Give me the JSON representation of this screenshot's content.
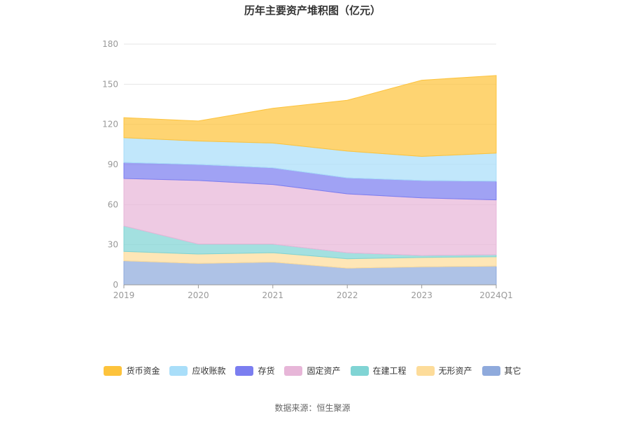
{
  "title": "历年主要资产堆积图（亿元）",
  "source": "数据来源：恒生聚源",
  "chart_data": {
    "type": "area",
    "stacked": true,
    "x": [
      "2019",
      "2020",
      "2021",
      "2022",
      "2023",
      "2024Q1"
    ],
    "ylim": [
      0,
      180
    ],
    "yticks": [
      0,
      30,
      60,
      90,
      120,
      150,
      180
    ],
    "grid": true,
    "legend_position": "bottom",
    "series": [
      {
        "name": "其它",
        "color": "#8faadc",
        "values": [
          18,
          16,
          17,
          12.5,
          13.5,
          14
        ]
      },
      {
        "name": "无形资产",
        "color": "#fddc9a",
        "values": [
          7,
          7,
          7,
          7,
          7,
          7
        ]
      },
      {
        "name": "在建工程",
        "color": "#80d4d4",
        "values": [
          19,
          7.5,
          6.5,
          4.5,
          1.5,
          1.5
        ]
      },
      {
        "name": "固定资产",
        "color": "#e7b6d8",
        "values": [
          35.5,
          47.5,
          44.5,
          44,
          43,
          41
        ]
      },
      {
        "name": "存货",
        "color": "#7b7ef0",
        "values": [
          12,
          12,
          12.5,
          12,
          13,
          14
        ]
      },
      {
        "name": "应收账款",
        "color": "#a9def9",
        "values": [
          18.5,
          17.5,
          18.5,
          20,
          18,
          21
        ]
      },
      {
        "name": "货币资金",
        "color": "#fdc33c",
        "values": [
          15,
          15,
          26,
          38,
          57,
          58
        ]
      }
    ],
    "legend_order": [
      "货币资金",
      "应收账款",
      "存货",
      "固定资产",
      "在建工程",
      "无形资产",
      "其它"
    ]
  }
}
